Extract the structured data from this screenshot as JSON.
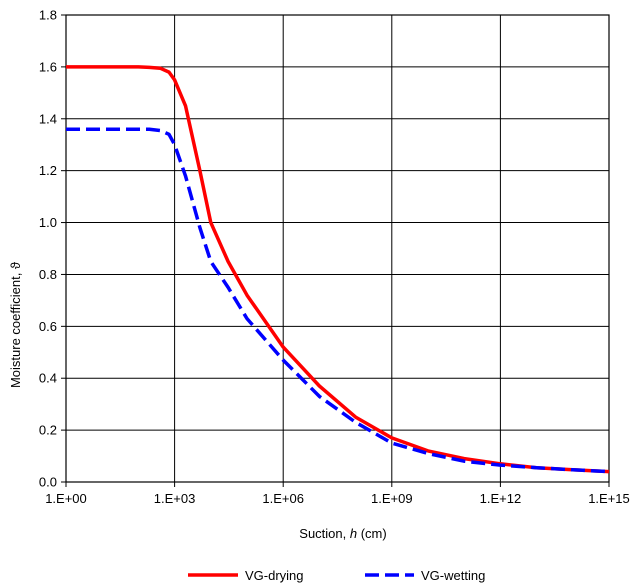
{
  "chart_data": {
    "type": "line",
    "xscale": "log",
    "xlabel": {
      "prefix": "Suction, ",
      "italic": "h",
      "suffix": " (cm)"
    },
    "ylabel": "Moisture coefficient, ϑ",
    "xlim": [
      1,
      1000000000000000.0
    ],
    "ylim": [
      0,
      1.8
    ],
    "grid": true,
    "legend_position": "bottom",
    "x_ticks": [
      {
        "value": 1,
        "label": "1.E+00"
      },
      {
        "value": 1000,
        "label": "1.E+03"
      },
      {
        "value": 1000000,
        "label": "1.E+06"
      },
      {
        "value": 1000000000,
        "label": "1.E+09"
      },
      {
        "value": 1000000000000,
        "label": "1.E+12"
      },
      {
        "value": 1000000000000000,
        "label": "1.E+15"
      }
    ],
    "y_ticks": [
      {
        "value": 0,
        "label": "0.0"
      },
      {
        "value": 0.2,
        "label": "0.2"
      },
      {
        "value": 0.4,
        "label": "0.4"
      },
      {
        "value": 0.6,
        "label": "0.6"
      },
      {
        "value": 0.8,
        "label": "0.8"
      },
      {
        "value": 1.0,
        "label": "1.0"
      },
      {
        "value": 1.2,
        "label": "1.2"
      },
      {
        "value": 1.4,
        "label": "1.4"
      },
      {
        "value": 1.6,
        "label": "1.6"
      },
      {
        "value": 1.8,
        "label": "1.8"
      }
    ],
    "series": [
      {
        "name": "VG-drying",
        "color": "#ff0000",
        "dash": "solid",
        "x": [
          1,
          10,
          100,
          200,
          400,
          700,
          1000,
          2000,
          5000,
          10000,
          30000,
          100000,
          1000000,
          10000000,
          100000000,
          1000000000,
          10000000000,
          100000000000,
          1000000000000,
          10000000000000,
          100000000000000,
          1000000000000000
        ],
        "y": [
          1.6,
          1.6,
          1.6,
          1.598,
          1.595,
          1.58,
          1.55,
          1.45,
          1.2,
          1.0,
          0.85,
          0.72,
          0.52,
          0.37,
          0.25,
          0.17,
          0.12,
          0.09,
          0.07,
          0.055,
          0.047,
          0.04
        ]
      },
      {
        "name": "VG-wetting",
        "color": "#0000ff",
        "dash": "dashed",
        "x": [
          1,
          10,
          100,
          200,
          400,
          700,
          1000,
          2000,
          5000,
          10000,
          30000,
          100000,
          1000000,
          10000000,
          100000000,
          1000000000,
          10000000000,
          100000000000,
          1000000000000,
          10000000000000,
          100000000000000,
          1000000000000000
        ],
        "y": [
          1.36,
          1.36,
          1.36,
          1.36,
          1.355,
          1.34,
          1.3,
          1.18,
          0.98,
          0.85,
          0.75,
          0.63,
          0.47,
          0.33,
          0.23,
          0.15,
          0.11,
          0.08,
          0.065,
          0.055,
          0.047,
          0.04
        ]
      }
    ]
  }
}
